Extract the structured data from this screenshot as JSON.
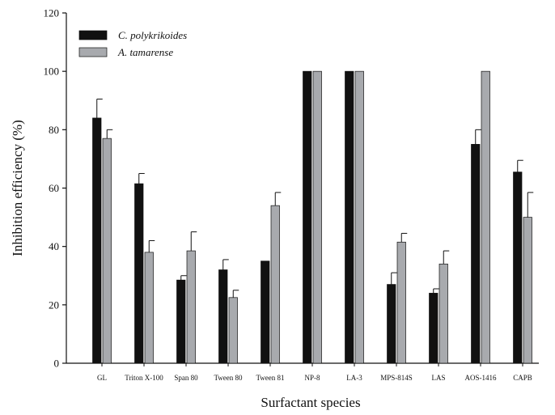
{
  "chart_data": {
    "type": "bar",
    "title": "",
    "xlabel": "Surfactant species",
    "ylabel": "Inhibition efficiency (%)",
    "ylim": [
      0,
      120
    ],
    "yticks": [
      0,
      20,
      40,
      60,
      80,
      100,
      120
    ],
    "grid": false,
    "legend_position": "top-left",
    "categories": [
      "GL",
      "Triton X-100",
      "Span 80",
      "Tween 80",
      "Tween 81",
      "NP-8",
      "LA-3",
      "MPS-814S",
      "LAS",
      "AOS-1416",
      "CAPB"
    ],
    "series": [
      {
        "name": "C. polykrikoides",
        "color": "#111111",
        "values": [
          84,
          61.5,
          28.5,
          32,
          35,
          100,
          100,
          27,
          24,
          75,
          65.5
        ],
        "errors": [
          6.5,
          3.5,
          1.5,
          3.5,
          0,
          0,
          0,
          4,
          1.5,
          5,
          4
        ]
      },
      {
        "name": "A. tamarense",
        "color": "#a8aaae",
        "values": [
          77,
          38,
          38.5,
          22.5,
          54,
          100,
          100,
          41.5,
          34,
          100,
          50
        ],
        "errors": [
          3,
          4,
          6.5,
          2.5,
          4.5,
          0,
          0,
          3,
          4.5,
          0,
          8.5
        ]
      }
    ]
  }
}
